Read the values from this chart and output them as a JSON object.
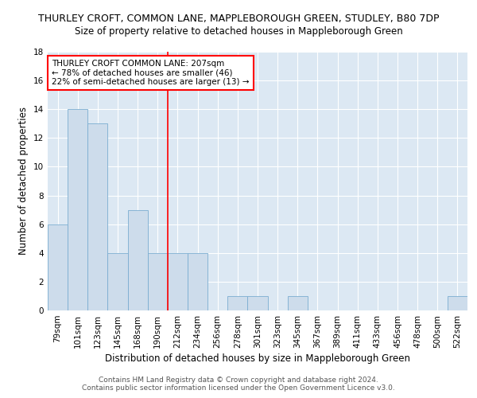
{
  "title": "THURLEY CROFT, COMMON LANE, MAPPLEBOROUGH GREEN, STUDLEY, B80 7DP",
  "subtitle": "Size of property relative to detached houses in Mappleborough Green",
  "xlabel": "Distribution of detached houses by size in Mappleborough Green",
  "ylabel": "Number of detached properties",
  "footer1": "Contains HM Land Registry data © Crown copyright and database right 2024.",
  "footer2": "Contains public sector information licensed under the Open Government Licence v3.0.",
  "categories": [
    "79sqm",
    "101sqm",
    "123sqm",
    "145sqm",
    "168sqm",
    "190sqm",
    "212sqm",
    "234sqm",
    "256sqm",
    "278sqm",
    "301sqm",
    "323sqm",
    "345sqm",
    "367sqm",
    "389sqm",
    "411sqm",
    "433sqm",
    "456sqm",
    "478sqm",
    "500sqm",
    "522sqm"
  ],
  "values": [
    6,
    14,
    13,
    4,
    7,
    4,
    4,
    4,
    0,
    1,
    1,
    0,
    1,
    0,
    0,
    0,
    0,
    0,
    0,
    0,
    1
  ],
  "bar_color": "#cddceb",
  "bar_edgecolor": "#7badd1",
  "red_line_index": 6,
  "ylim": [
    0,
    18
  ],
  "yticks": [
    0,
    2,
    4,
    6,
    8,
    10,
    12,
    14,
    16,
    18
  ],
  "annotation_title": "THURLEY CROFT COMMON LANE: 207sqm",
  "annotation_line1": "← 78% of detached houses are smaller (46)",
  "annotation_line2": "22% of semi-detached houses are larger (13) →",
  "bg_color": "#dce8f3",
  "grid_color": "#ffffff",
  "title_fontsize": 9,
  "subtitle_fontsize": 8.5,
  "xlabel_fontsize": 8.5,
  "ylabel_fontsize": 8.5,
  "tick_fontsize": 7.5,
  "annotation_fontsize": 7.5,
  "footer_fontsize": 6.5
}
